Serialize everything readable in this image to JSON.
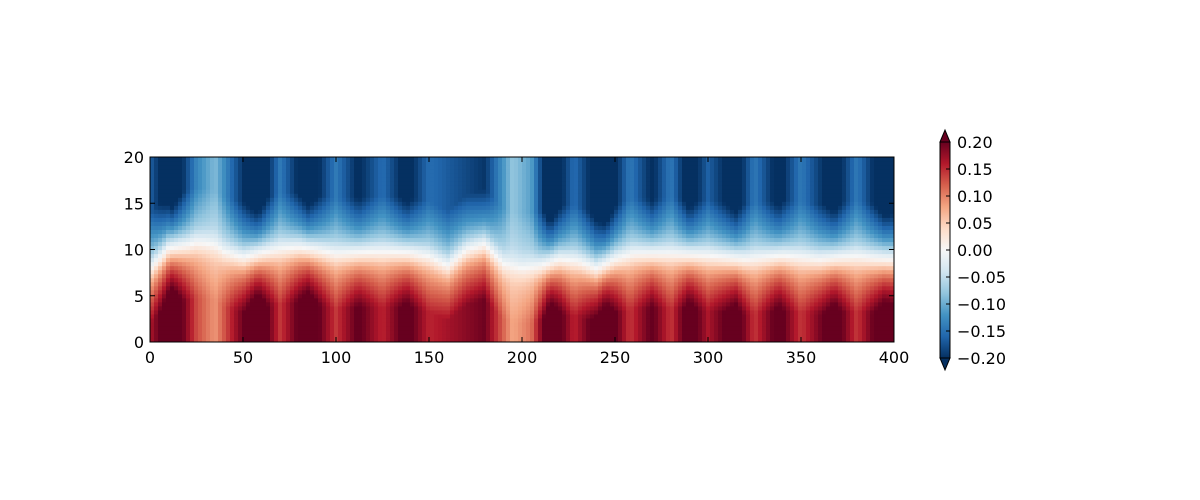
{
  "chart_data": {
    "type": "heatmap",
    "title": "",
    "xlabel": "",
    "ylabel": "",
    "xlim": [
      0,
      400
    ],
    "ylim": [
      0,
      20
    ],
    "x_ticks": [
      0,
      50,
      100,
      150,
      200,
      250,
      300,
      350,
      400
    ],
    "x_tick_labels": [
      "0",
      "50",
      "100",
      "150",
      "200",
      "250",
      "300",
      "350",
      "400"
    ],
    "y_ticks": [
      0,
      5,
      10,
      15,
      20
    ],
    "y_tick_labels": [
      "0",
      "5",
      "10",
      "15",
      "20"
    ],
    "colormap": "RdBu_r",
    "value_range": [
      -0.2,
      0.2
    ],
    "colorbar": {
      "extend": "both",
      "ticks": [
        0.2,
        0.15,
        0.1,
        0.05,
        0.0,
        -0.05,
        -0.1,
        -0.15,
        -0.2
      ],
      "tick_labels": [
        "0.20",
        "0.15",
        "0.10",
        "0.05",
        "0.00",
        "−0.05",
        "−0.10",
        "−0.15",
        "−0.20"
      ]
    },
    "interface_depth": [
      [
        0,
        8
      ],
      [
        10,
        10.2
      ],
      [
        20,
        10.5
      ],
      [
        25,
        10.8
      ],
      [
        30,
        10.7
      ],
      [
        35,
        10.5
      ],
      [
        40,
        9.8
      ],
      [
        50,
        9.2
      ],
      [
        60,
        9.7
      ],
      [
        70,
        10.1
      ],
      [
        80,
        10.3
      ],
      [
        90,
        10.0
      ],
      [
        100,
        9.6
      ],
      [
        110,
        9.7
      ],
      [
        120,
        9.8
      ],
      [
        130,
        9.8
      ],
      [
        140,
        9.7
      ],
      [
        150,
        9.3
      ],
      [
        160,
        8.3
      ],
      [
        170,
        10.0
      ],
      [
        180,
        10.6
      ],
      [
        190,
        8.5
      ],
      [
        200,
        8.0
      ],
      [
        210,
        8.3
      ],
      [
        220,
        9.0
      ],
      [
        230,
        8.8
      ],
      [
        240,
        8.0
      ],
      [
        250,
        9.0
      ],
      [
        260,
        9.6
      ],
      [
        270,
        9.6
      ],
      [
        280,
        9.6
      ],
      [
        290,
        9.5
      ],
      [
        300,
        9.4
      ],
      [
        310,
        9.2
      ],
      [
        320,
        9.0
      ],
      [
        330,
        9.2
      ],
      [
        340,
        9.4
      ],
      [
        350,
        9.2
      ],
      [
        360,
        9.0
      ],
      [
        370,
        9.2
      ],
      [
        380,
        9.3
      ],
      [
        390,
        9.1
      ],
      [
        400,
        9.0
      ]
    ],
    "vertical_bands": [
      [
        0,
        0.6
      ],
      [
        12,
        1.0
      ],
      [
        25,
        0.45
      ],
      [
        35,
        0.25
      ],
      [
        45,
        0.6
      ],
      [
        58,
        1.0
      ],
      [
        70,
        0.5
      ],
      [
        85,
        0.95
      ],
      [
        100,
        0.5
      ],
      [
        112,
        0.8
      ],
      [
        125,
        0.55
      ],
      [
        138,
        0.85
      ],
      [
        150,
        0.55
      ],
      [
        165,
        0.65
      ],
      [
        180,
        0.75
      ],
      [
        195,
        0.2
      ],
      [
        205,
        0.35
      ],
      [
        215,
        1.0
      ],
      [
        228,
        0.55
      ],
      [
        245,
        1.0
      ],
      [
        258,
        0.5
      ],
      [
        270,
        0.8
      ],
      [
        280,
        0.5
      ],
      [
        290,
        0.9
      ],
      [
        300,
        0.6
      ],
      [
        315,
        0.9
      ],
      [
        325,
        0.5
      ],
      [
        338,
        0.85
      ],
      [
        350,
        0.5
      ],
      [
        368,
        0.9
      ],
      [
        380,
        0.5
      ],
      [
        395,
        0.95
      ],
      [
        400,
        0.9
      ]
    ]
  }
}
